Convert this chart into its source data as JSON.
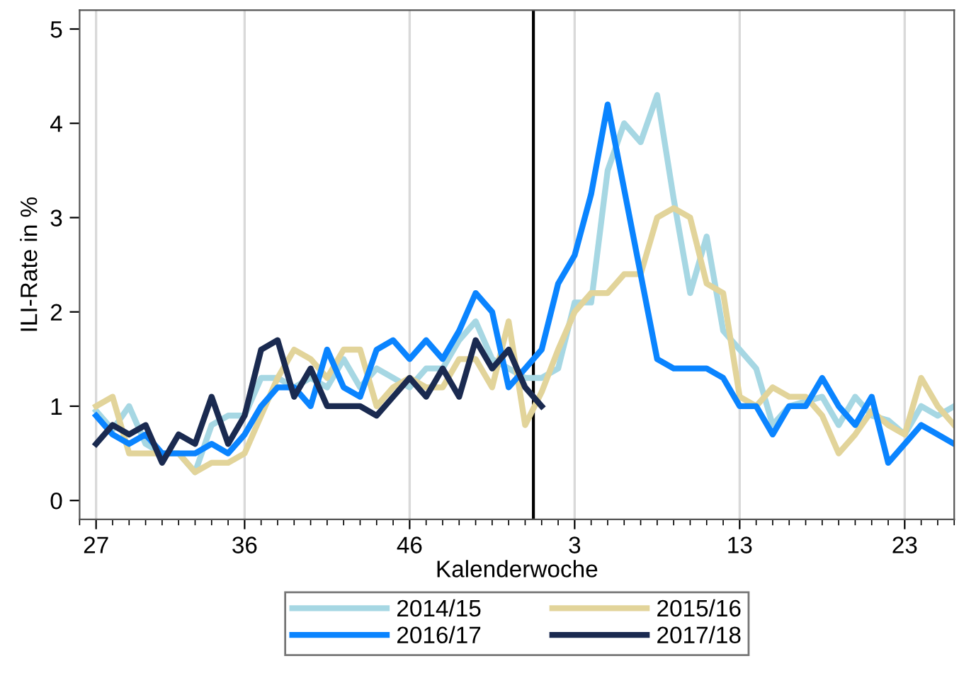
{
  "chart_data": {
    "type": "line",
    "xlabel": "Kalenderwoche",
    "ylabel": "ILI-Rate in %",
    "categories": [
      "27",
      null,
      null,
      null,
      null,
      null,
      null,
      null,
      null,
      "36",
      null,
      null,
      null,
      null,
      null,
      null,
      null,
      null,
      null,
      "46",
      null,
      null,
      null,
      null,
      null,
      null,
      null,
      null,
      null,
      "3",
      null,
      null,
      null,
      null,
      null,
      null,
      null,
      null,
      null,
      "13",
      null,
      null,
      null,
      null,
      null,
      null,
      null,
      null,
      null,
      "23",
      null,
      null,
      null
    ],
    "ylim": [
      -0.2,
      5.2
    ],
    "yticks": [
      0,
      1,
      2,
      3,
      4,
      5
    ],
    "grid": "x",
    "legend": "bottom",
    "line_style": "solid",
    "marker": "none",
    "series": [
      {
        "name": "2014/15",
        "color": "#a6d7e3",
        "values": [
          0.95,
          0.75,
          1.0,
          0.6,
          0.5,
          0.5,
          0.3,
          0.8,
          0.9,
          0.9,
          1.3,
          1.3,
          1.2,
          1.3,
          1.2,
          1.5,
          1.2,
          1.4,
          1.3,
          1.2,
          1.4,
          1.4,
          1.7,
          1.9,
          1.5,
          1.4,
          1.3,
          1.3,
          1.4,
          2.1,
          2.1,
          3.5,
          4.0,
          3.8,
          4.3,
          3.2,
          2.2,
          2.8,
          1.8,
          1.6,
          1.4,
          0.8,
          1.0,
          1.05,
          1.1,
          0.8,
          1.1,
          0.9,
          0.85,
          0.7,
          1.0,
          0.9,
          1.0
        ]
      },
      {
        "name": "2015/16",
        "color": "#e2d49a",
        "values": [
          1.0,
          1.1,
          0.5,
          0.5,
          0.5,
          0.5,
          0.3,
          0.4,
          0.4,
          0.5,
          0.9,
          1.3,
          1.6,
          1.5,
          1.3,
          1.6,
          1.6,
          1.0,
          1.2,
          1.3,
          1.2,
          1.2,
          1.5,
          1.5,
          1.2,
          1.9,
          0.8,
          1.15,
          1.6,
          2.0,
          2.2,
          2.2,
          2.4,
          2.4,
          3.0,
          3.1,
          3.0,
          2.3,
          2.2,
          1.1,
          1.0,
          1.2,
          1.1,
          1.1,
          0.9,
          0.5,
          0.7,
          0.95,
          0.8,
          0.7,
          1.3,
          1.0,
          0.8
        ]
      },
      {
        "name": "2016/17",
        "color": "#0a84ff",
        "values": [
          0.9,
          0.7,
          0.6,
          0.7,
          0.5,
          0.5,
          0.5,
          0.6,
          0.5,
          0.7,
          1.0,
          1.2,
          1.2,
          1.0,
          1.6,
          1.2,
          1.1,
          1.6,
          1.7,
          1.5,
          1.7,
          1.5,
          1.8,
          2.2,
          2.0,
          1.2,
          1.4,
          1.6,
          2.3,
          2.6,
          3.25,
          4.2,
          3.3,
          2.4,
          1.5,
          1.4,
          1.4,
          1.4,
          1.3,
          1.0,
          1.0,
          0.7,
          1.0,
          1.0,
          1.3,
          1.0,
          0.8,
          1.1,
          0.4,
          0.6,
          0.8,
          0.7,
          0.6
        ]
      },
      {
        "name": "2017/18",
        "color": "#1a2a50",
        "values": [
          0.6,
          0.8,
          0.7,
          0.8,
          0.4,
          0.7,
          0.6,
          1.1,
          0.6,
          0.9,
          1.6,
          1.7,
          1.1,
          1.4,
          1.0,
          1.0,
          1.0,
          0.9,
          1.1,
          1.3,
          1.1,
          1.4,
          1.1,
          1.7,
          1.4,
          1.6,
          1.2,
          1.0,
          null,
          null,
          null,
          null,
          null,
          null,
          null,
          null,
          null,
          null,
          null,
          null,
          null,
          null,
          null,
          null,
          null,
          null,
          null,
          null,
          null,
          null,
          null,
          null,
          null
        ]
      }
    ]
  }
}
